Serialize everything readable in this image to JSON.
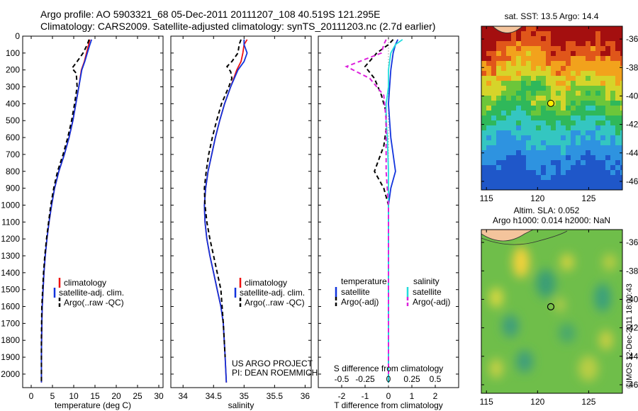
{
  "header": {
    "line1": "Argo profile: AO 5903321_68 05-Dec-2011 20111207_108 40.519S 121.295E",
    "line2": "Climatology: CARS2009. Satellite-adjusted climatology: synTS_20111203.nc (2.7d earlier)"
  },
  "credit": {
    "project": "US ARGO PROJECT",
    "pi": "PI: DEAN ROEMMICH",
    "imos": "©IMOS 12-Dec-2011 18:00:43"
  },
  "colors": {
    "climatology": "#ee1111",
    "satellite": "#1133dd",
    "argo": "#000000",
    "salinity_satellite": "#22dddd",
    "salinity_argo": "#dd22dd"
  },
  "chart_data": [
    {
      "type": "line",
      "id": "temperature",
      "xlabel": "temperature (deg C)",
      "ylabel": "",
      "xlim": [
        -2,
        31
      ],
      "ylim": [
        2080,
        0
      ],
      "xticks": [
        0,
        5,
        10,
        15,
        20,
        25,
        30
      ],
      "yticks": [
        0,
        100,
        200,
        300,
        400,
        500,
        600,
        700,
        800,
        900,
        1000,
        1100,
        1200,
        1300,
        1400,
        1500,
        1600,
        1700,
        1800,
        1900,
        2000
      ],
      "legend": [
        "climatology",
        "satellite-adj. clim.",
        "Argo(..raw -QC)"
      ],
      "series": [
        {
          "name": "climatology",
          "color": "#ee1111",
          "style": "solid",
          "x": [
            13.8,
            13.5,
            13.0,
            12.5,
            11.8,
            11.2,
            10.5,
            9.8,
            8.9,
            7.8,
            6.5,
            5.5,
            4.8,
            4.2,
            3.7,
            3.3,
            3.0,
            2.8,
            2.6,
            2.5,
            2.4,
            2.4
          ],
          "y": [
            20,
            50,
            100,
            150,
            200,
            300,
            400,
            500,
            600,
            700,
            800,
            900,
            1000,
            1100,
            1200,
            1300,
            1400,
            1500,
            1600,
            1700,
            1900,
            2050
          ]
        },
        {
          "name": "satellite-adj. clim.",
          "color": "#1133dd",
          "style": "solid",
          "x": [
            14.2,
            13.8,
            13.2,
            12.6,
            11.9,
            11.2,
            10.5,
            9.8,
            8.9,
            7.8,
            6.5,
            5.5,
            4.8,
            4.2,
            3.7,
            3.3,
            3.0,
            2.8,
            2.6,
            2.5,
            2.4,
            2.4
          ],
          "y": [
            20,
            50,
            100,
            150,
            200,
            300,
            400,
            500,
            600,
            700,
            800,
            900,
            1000,
            1100,
            1200,
            1300,
            1400,
            1500,
            1600,
            1700,
            1900,
            2050
          ]
        },
        {
          "name": "Argo(..raw -QC)",
          "color": "#000000",
          "style": "dashed",
          "x": [
            13.6,
            13.2,
            12.2,
            10.8,
            9.6,
            10.6,
            10.8,
            10.2,
            9.5,
            8.6,
            7.5,
            6.2,
            5.3,
            4.6,
            4.1,
            3.6,
            3.2,
            2.9,
            2.7,
            2.5,
            2.4,
            2.4
          ],
          "y": [
            20,
            50,
            100,
            150,
            190,
            220,
            300,
            400,
            500,
            600,
            700,
            800,
            900,
            1000,
            1100,
            1200,
            1300,
            1400,
            1500,
            1600,
            1800,
            2050
          ]
        }
      ]
    },
    {
      "type": "line",
      "id": "salinity",
      "xlabel": "salinity",
      "ylabel": "",
      "xlim": [
        33.8,
        36.1
      ],
      "ylim": [
        2080,
        0
      ],
      "xticks": [
        34,
        34.5,
        35,
        35.5,
        36
      ],
      "legend": [
        "climatology",
        "satellite-adj. clim.",
        "Argo(..raw -QC)"
      ],
      "series": [
        {
          "name": "climatology",
          "color": "#ee1111",
          "style": "solid",
          "x": [
            35.05,
            35.0,
            34.98,
            34.95,
            34.88,
            34.78,
            34.68,
            34.6,
            34.53,
            34.47,
            34.41,
            34.37,
            34.35,
            34.36,
            34.39,
            34.44,
            34.5,
            34.56,
            34.62,
            34.66,
            34.69,
            34.71
          ],
          "y": [
            20,
            50,
            100,
            150,
            200,
            300,
            400,
            500,
            600,
            700,
            800,
            900,
            1000,
            1100,
            1200,
            1300,
            1400,
            1500,
            1600,
            1700,
            1900,
            2050
          ]
        },
        {
          "name": "satellite-adj. clim.",
          "color": "#1133dd",
          "style": "solid",
          "x": [
            35.0,
            35.0,
            35.05,
            35.0,
            34.9,
            34.78,
            34.68,
            34.6,
            34.53,
            34.47,
            34.41,
            34.37,
            34.35,
            34.36,
            34.39,
            34.44,
            34.5,
            34.56,
            34.62,
            34.66,
            34.69,
            34.71
          ],
          "y": [
            20,
            50,
            100,
            150,
            200,
            300,
            400,
            500,
            600,
            700,
            800,
            900,
            1000,
            1100,
            1200,
            1300,
            1400,
            1500,
            1600,
            1700,
            1900,
            2050
          ]
        },
        {
          "name": "Argo(..raw -QC)",
          "color": "#000000",
          "style": "dashed",
          "x": [
            34.95,
            34.92,
            34.9,
            34.8,
            34.72,
            34.78,
            34.8,
            34.75,
            34.63,
            34.55,
            34.48,
            34.42,
            34.38,
            34.35,
            34.36,
            34.39,
            34.44,
            34.5,
            34.56,
            34.62,
            34.66,
            34.69
          ],
          "y": [
            20,
            50,
            100,
            150,
            180,
            210,
            250,
            300,
            400,
            500,
            600,
            700,
            800,
            900,
            1000,
            1100,
            1200,
            1300,
            1400,
            1500,
            1700,
            1900
          ]
        }
      ]
    },
    {
      "type": "line",
      "id": "difference",
      "xlabel": "T difference from climatology",
      "top_xlabel": "S difference from climatology",
      "xlim": [
        -3,
        3
      ],
      "ylim": [
        2080,
        0
      ],
      "xticks": [
        -2,
        -1,
        0,
        1,
        2
      ],
      "top_xticks": [
        -0.5,
        -0.25,
        0,
        0.25,
        0.5
      ],
      "legend": {
        "temperature_title": "temperature",
        "salinity_title": "salinity",
        "entries": [
          "satellite",
          "Argo(-adj)",
          "satellite",
          "Argo(-adj)"
        ]
      },
      "series": [
        {
          "name": "satellite",
          "group": "temperature",
          "color": "#1133dd",
          "style": "solid",
          "x": [
            0.4,
            0.3,
            0.2,
            0.1,
            0.05,
            0.0,
            0.05,
            0.1,
            0.2,
            0.3,
            0.1,
            0.0,
            0.0,
            0.0,
            0.0,
            0.0
          ],
          "y": [
            20,
            50,
            100,
            200,
            300,
            400,
            500,
            600,
            700,
            800,
            900,
            1000,
            1200,
            1500,
            1800,
            2050
          ]
        },
        {
          "name": "Argo(-adj)",
          "group": "temperature",
          "color": "#000000",
          "style": "dashed",
          "x": [
            0.2,
            0.0,
            -0.5,
            -1.0,
            -0.6,
            -0.3,
            -0.1,
            -0.1,
            -0.2,
            -0.6,
            -0.2,
            0.0,
            0.0,
            0.0,
            0.0,
            0.0
          ],
          "y": [
            20,
            50,
            100,
            180,
            250,
            350,
            450,
            550,
            650,
            800,
            900,
            1000,
            1200,
            1500,
            1800,
            2050
          ]
        },
        {
          "name": "satellite",
          "group": "salinity",
          "color": "#22dddd",
          "style": "solid",
          "x": [
            0.6,
            0.3,
            0.1,
            0.0,
            0.0,
            -0.1,
            -0.1,
            -0.05,
            0.0,
            0.0,
            0.0,
            0.0,
            0.0,
            0.0,
            0.0
          ],
          "y": [
            20,
            50,
            100,
            200,
            300,
            400,
            500,
            600,
            800,
            1000,
            1200,
            1400,
            1600,
            1800,
            2050
          ]
        },
        {
          "name": "Argo(-adj)",
          "group": "salinity",
          "color": "#dd22dd",
          "style": "dashed",
          "x": [
            -0.1,
            -0.2,
            -0.3,
            -1.8,
            -0.8,
            -0.2,
            -0.1,
            -0.1,
            -0.1,
            0.0,
            0.0,
            0.0,
            0.0
          ],
          "y": [
            20,
            50,
            100,
            180,
            250,
            350,
            500,
            650,
            800,
            1000,
            1300,
            1600,
            2000
          ]
        }
      ]
    },
    {
      "type": "heatmap",
      "id": "sst-map",
      "title": "sat. SST: 13.5 Argo: 14.4",
      "xlim": [
        114.5,
        128.3
      ],
      "ylim": [
        -46.6,
        -35.1
      ],
      "xticks": [
        115,
        120,
        125
      ],
      "yticks": [
        -36,
        -38,
        -40,
        -42,
        -44,
        -46
      ],
      "marker": {
        "lon": 121.295,
        "lat": -40.519
      }
    },
    {
      "type": "heatmap",
      "id": "sla-map",
      "title": "Altim. SLA: 0.052",
      "subtitle": "Argo h1000: 0.014 h2000: NaN",
      "xlim": [
        114.5,
        128.3
      ],
      "ylim": [
        -46.6,
        -35.1
      ],
      "xticks": [
        115,
        120,
        125
      ],
      "yticks": [
        -36,
        -38,
        -40,
        -42,
        -44,
        -46
      ],
      "marker": {
        "lon": 121.295,
        "lat": -40.519
      }
    }
  ]
}
